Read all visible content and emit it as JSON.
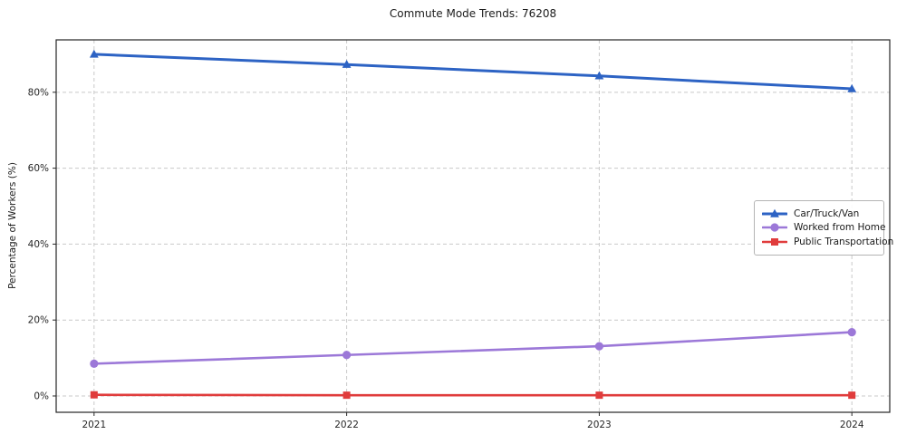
{
  "chart_data": {
    "type": "line",
    "title": "Commute Mode Trends: 76208",
    "xlabel": "",
    "ylabel": "Percentage of Workers (%)",
    "x": [
      2021,
      2022,
      2023,
      2024
    ],
    "x_tick_labels": [
      "2021",
      "2022",
      "2023",
      "2024"
    ],
    "y_ticks": [
      0,
      20,
      40,
      60,
      80
    ],
    "y_tick_labels": [
      "0%",
      "20%",
      "40%",
      "60%",
      "80%"
    ],
    "xlim": [
      2020.85,
      2024.15
    ],
    "ylim": [
      -4.3,
      93.8
    ],
    "grid": true,
    "legend_position": "center right",
    "series": [
      {
        "name": "Car/Truck/Van",
        "color": "#2d63c4",
        "marker": "triangle",
        "values": [
          90.0,
          87.3,
          84.3,
          80.9
        ]
      },
      {
        "name": "Worked from Home",
        "color": "#9c78d8",
        "marker": "circle",
        "values": [
          8.5,
          10.8,
          13.1,
          16.8
        ]
      },
      {
        "name": "Public Transportation",
        "color": "#e03c3c",
        "marker": "square",
        "values": [
          0.3,
          0.2,
          0.2,
          0.2
        ]
      }
    ]
  }
}
